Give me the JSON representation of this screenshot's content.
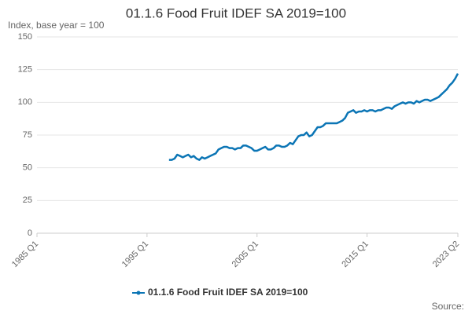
{
  "chart_data": {
    "type": "line",
    "title": "01.1.6 Food Fruit IDEF SA 2019=100",
    "subtitle": "Index, base year = 100",
    "source": "Source:",
    "categories": [
      "1985 Q1",
      null,
      null,
      null,
      null,
      null,
      null,
      null,
      null,
      null,
      null,
      null,
      null,
      null,
      null,
      null,
      null,
      null,
      null,
      null,
      null,
      null,
      null,
      null,
      null,
      null,
      null,
      null,
      null,
      null,
      null,
      null,
      null,
      null,
      null,
      null,
      null,
      null,
      null,
      null,
      "1995 Q1",
      null,
      null,
      null,
      null,
      null,
      null,
      null,
      null,
      null,
      null,
      null,
      null,
      null,
      null,
      null,
      null,
      null,
      null,
      null,
      null,
      null,
      null,
      null,
      null,
      null,
      null,
      null,
      null,
      null,
      null,
      null,
      null,
      null,
      null,
      null,
      null,
      null,
      null,
      null,
      "2005 Q1",
      null,
      null,
      null,
      null,
      null,
      null,
      null,
      null,
      null,
      null,
      null,
      null,
      null,
      null,
      null,
      null,
      null,
      null,
      null,
      null,
      null,
      null,
      null,
      null,
      null,
      null,
      null,
      null,
      null,
      null,
      null,
      null,
      null,
      null,
      null,
      null,
      null,
      null,
      null,
      "2015 Q1",
      null,
      null,
      null,
      null,
      null,
      null,
      null,
      null,
      null,
      null,
      null,
      null,
      null,
      null,
      null,
      null,
      null,
      null,
      null,
      null,
      null,
      null,
      null,
      null,
      null,
      null,
      null,
      null,
      null,
      null,
      null,
      null,
      "2023 Q2"
    ],
    "series": [
      {
        "name": "01.1.6 Food Fruit IDEF SA 2019=100",
        "color": "#0b75b5",
        "values": [
          null,
          null,
          null,
          null,
          null,
          null,
          null,
          null,
          null,
          null,
          null,
          null,
          null,
          null,
          null,
          null,
          null,
          null,
          null,
          null,
          null,
          null,
          null,
          null,
          null,
          null,
          null,
          null,
          null,
          null,
          null,
          null,
          null,
          null,
          null,
          null,
          null,
          null,
          null,
          null,
          null,
          null,
          null,
          null,
          null,
          null,
          null,
          null,
          56,
          56,
          57,
          60,
          59,
          58,
          59,
          60,
          58,
          59,
          57,
          56,
          58,
          57,
          58,
          59,
          60,
          61,
          64,
          65,
          66,
          66,
          65,
          65,
          64,
          65,
          65,
          67,
          67,
          66,
          65,
          63,
          63,
          64,
          65,
          66,
          64,
          64,
          65,
          67,
          67,
          66,
          66,
          67,
          69,
          68,
          71,
          74,
          75,
          75,
          77,
          74,
          75,
          78,
          81,
          81,
          82,
          84,
          84,
          84,
          84,
          84,
          85,
          86,
          88,
          92,
          93,
          94,
          92,
          93,
          93,
          94,
          93,
          94,
          94,
          93,
          94,
          94,
          95,
          96,
          96,
          95,
          97,
          98,
          99,
          100,
          99,
          100,
          100,
          99,
          101,
          100,
          101,
          102,
          102,
          101,
          102,
          103,
          104,
          106,
          108,
          110,
          113,
          115,
          118,
          122
        ]
      }
    ],
    "ylim": [
      0,
      150
    ],
    "yticks": [
      0,
      25,
      50,
      75,
      100,
      125,
      150
    ],
    "grid": true
  }
}
